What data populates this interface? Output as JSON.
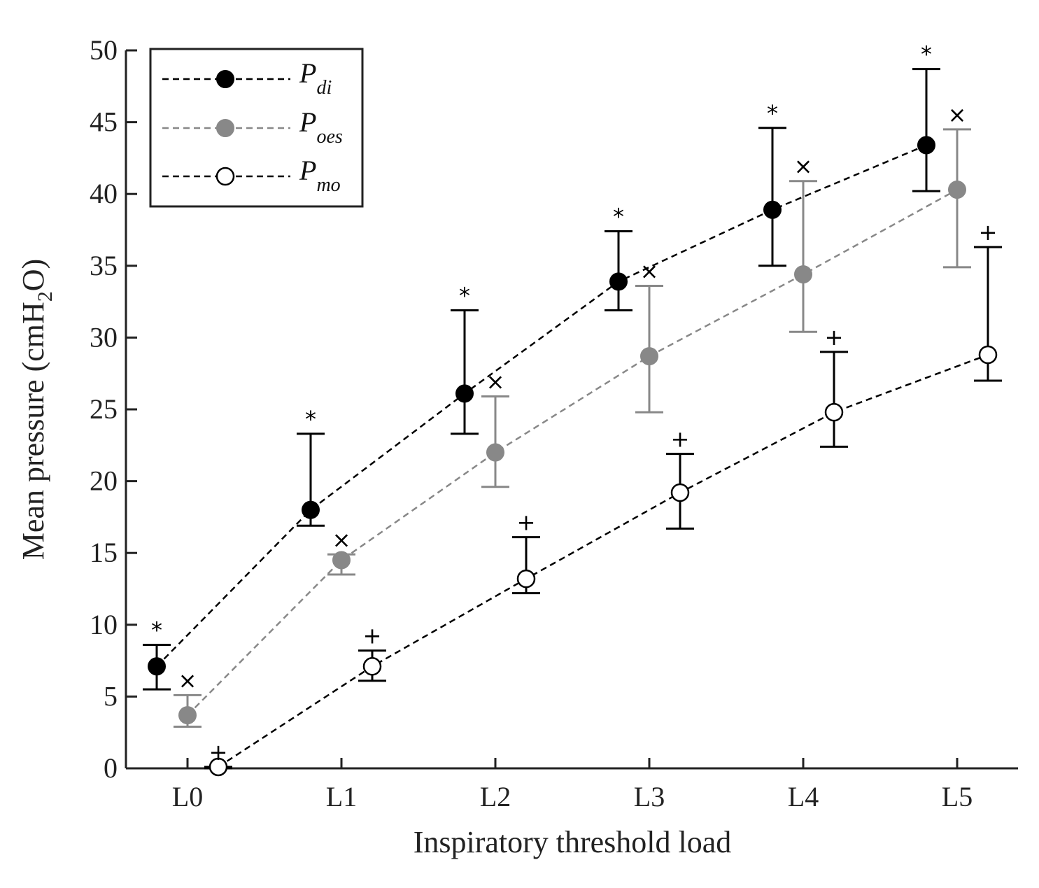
{
  "chart_data": {
    "type": "line",
    "title": "",
    "xlabel": "Inspiratory threshold load",
    "ylabel": "Mean pressure (cmH",
    "ylabel_subscript": "2",
    "ylabel_suffix": "O)",
    "categories": [
      "L0",
      "L1",
      "L2",
      "L3",
      "L4",
      "L5"
    ],
    "ylim": [
      0,
      50
    ],
    "yticks": [
      "0",
      "5",
      "10",
      "15",
      "20",
      "25",
      "30",
      "35",
      "40",
      "45",
      "50"
    ],
    "grid": false,
    "legend_position": "top-left",
    "series": [
      {
        "name": "P",
        "subscript": "di",
        "marker": "filled-black",
        "color": "#000000",
        "values": [
          7.1,
          18.0,
          26.1,
          33.9,
          38.9,
          43.4
        ],
        "err_low": [
          5.5,
          16.9,
          23.3,
          31.9,
          35.0,
          40.2
        ],
        "err_high": [
          8.6,
          23.3,
          31.9,
          37.4,
          44.6,
          48.7
        ],
        "significance_marker": "*"
      },
      {
        "name": "P",
        "subscript": "oes",
        "marker": "filled-gray",
        "color": "#888888",
        "values": [
          3.7,
          14.5,
          22.0,
          28.7,
          34.4,
          40.3
        ],
        "err_low": [
          2.9,
          13.5,
          19.6,
          24.8,
          30.4,
          34.9
        ],
        "err_high": [
          5.1,
          14.9,
          25.9,
          33.6,
          40.9,
          44.5
        ],
        "significance_marker": "×"
      },
      {
        "name": "P",
        "subscript": "mo",
        "marker": "open-white",
        "color": "#000000",
        "values": [
          0.1,
          7.1,
          13.2,
          19.2,
          24.8,
          28.8
        ],
        "err_low": [
          0.0,
          6.1,
          12.2,
          16.7,
          22.4,
          27.0
        ],
        "err_high": [
          0.1,
          8.2,
          16.1,
          21.9,
          29.0,
          36.3
        ],
        "significance_marker": "+"
      }
    ]
  }
}
